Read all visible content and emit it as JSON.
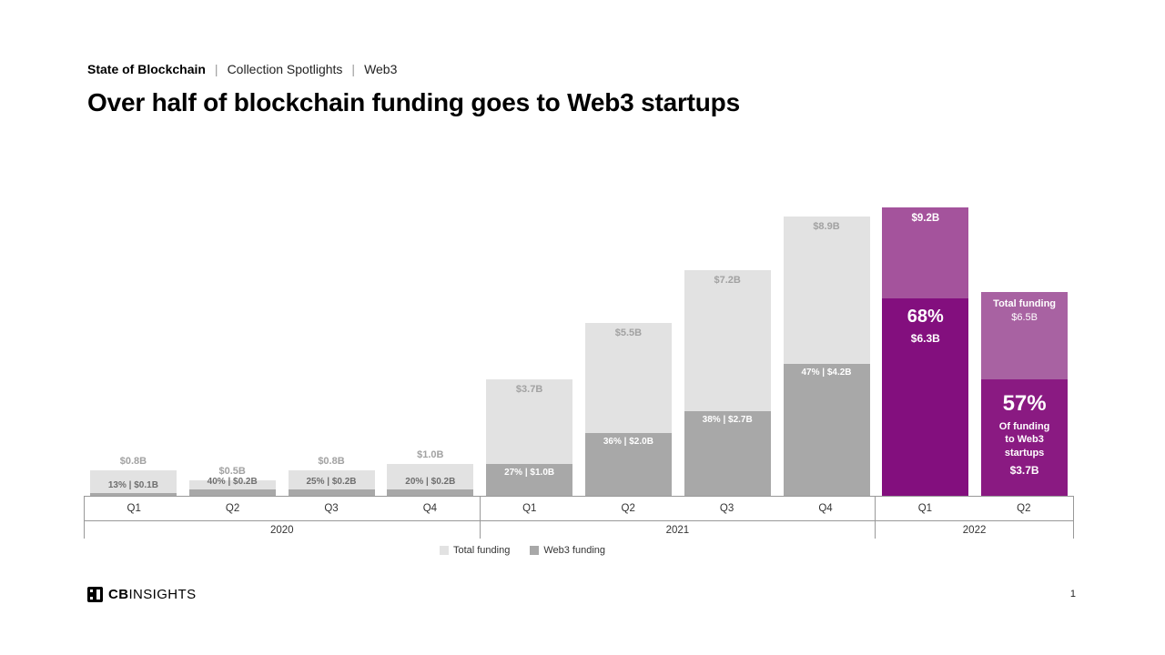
{
  "breadcrumb": {
    "section": "State of Blockchain",
    "sep": "|",
    "items": [
      "Collection Spotlights",
      "Web3"
    ]
  },
  "title": "Over half of blockchain funding goes to Web3 startups",
  "chart_data": {
    "type": "bar",
    "title": "Over half of blockchain funding goes to Web3 startups",
    "unit": "USD billions",
    "ylim": [
      0,
      9.2
    ],
    "grid": false,
    "legend_position": "bottom",
    "categories": [
      "Q1",
      "Q2",
      "Q3",
      "Q4",
      "Q1",
      "Q2",
      "Q3",
      "Q4",
      "Q1",
      "Q2"
    ],
    "year_groups": [
      {
        "label": "2020",
        "quarters": 4
      },
      {
        "label": "2021",
        "quarters": 4
      },
      {
        "label": "2022",
        "quarters": 2
      }
    ],
    "series": [
      {
        "name": "Total funding",
        "values": [
          0.8,
          0.5,
          0.8,
          1.0,
          3.7,
          5.5,
          7.2,
          8.9,
          9.2,
          6.5
        ]
      },
      {
        "name": "Web3 funding",
        "values": [
          0.1,
          0.2,
          0.2,
          0.2,
          1.0,
          2.0,
          2.7,
          4.2,
          6.3,
          3.7
        ]
      }
    ],
    "bars": [
      {
        "quarter": "Q1",
        "total": 0.8,
        "web3": 0.1,
        "total_label": "$0.8B",
        "web3_label": "13%  |  $0.1B",
        "variant": "gray-outside"
      },
      {
        "quarter": "Q2",
        "total": 0.5,
        "web3": 0.2,
        "total_label": "$0.5B",
        "web3_label": "40%  |  $0.2B",
        "variant": "gray-outside"
      },
      {
        "quarter": "Q3",
        "total": 0.8,
        "web3": 0.2,
        "total_label": "$0.8B",
        "web3_label": "25%  |  $0.2B",
        "variant": "gray-outside"
      },
      {
        "quarter": "Q4",
        "total": 1.0,
        "web3": 0.2,
        "total_label": "$1.0B",
        "web3_label": "20%  |  $0.2B",
        "variant": "gray-outside"
      },
      {
        "quarter": "Q1",
        "total": 3.7,
        "web3": 1.0,
        "total_label": "$3.7B",
        "web3_label": "27%  |  $1.0B",
        "variant": "gray-inside"
      },
      {
        "quarter": "Q2",
        "total": 5.5,
        "web3": 2.0,
        "total_label": "$5.5B",
        "web3_label": "36%  |  $2.0B",
        "variant": "gray-inside"
      },
      {
        "quarter": "Q3",
        "total": 7.2,
        "web3": 2.7,
        "total_label": "$7.2B",
        "web3_label": "38%  |  $2.7B",
        "variant": "gray-inside"
      },
      {
        "quarter": "Q4",
        "total": 8.9,
        "web3": 4.2,
        "total_label": "$8.9B",
        "web3_label": "47%  |  $4.2B",
        "variant": "gray-inside"
      },
      {
        "quarter": "Q1",
        "total": 9.2,
        "web3": 6.3,
        "total_label": "$9.2B",
        "web3_pct": "68%",
        "web3_amount": "$6.3B",
        "variant": "purple"
      },
      {
        "quarter": "Q2",
        "total": 6.5,
        "web3": 3.7,
        "total_title": "Total funding",
        "total_label": "$6.5B",
        "web3_pct": "57%",
        "web3_desc": "Of funding\nto Web3\nstartups",
        "web3_amount": "$3.7B",
        "variant": "purple-detail"
      }
    ],
    "legend": [
      "Total funding",
      "Web3 funding"
    ],
    "colors": {
      "total_gray": "#e2e2e2",
      "web3_gray": "#a8a8a8",
      "total_purple": "#a4539c",
      "web3_purple": "#830f7e",
      "total_purple2": "#a862a2",
      "web3_purple2": "#8a1a82",
      "axis_line": "#999999"
    }
  },
  "footer": {
    "brand_bold": "CB",
    "brand_rest": "INSIGHTS",
    "page_number": "1"
  }
}
